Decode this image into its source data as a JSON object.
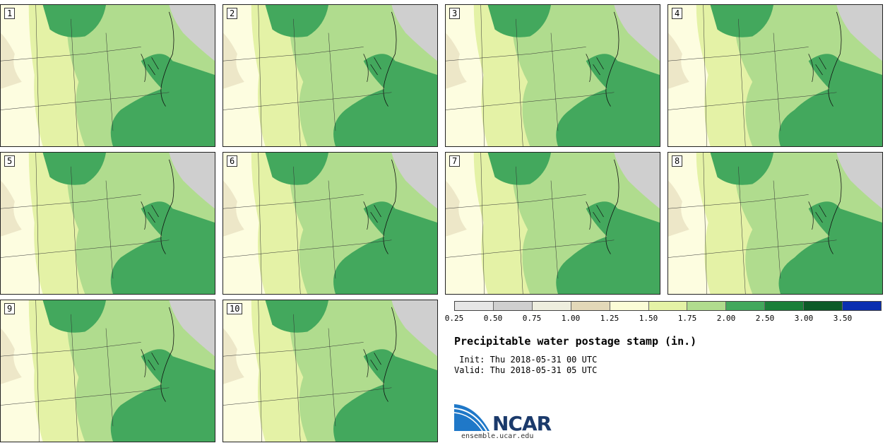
{
  "panels": [
    {
      "label": "1"
    },
    {
      "label": "2"
    },
    {
      "label": "3"
    },
    {
      "label": "4"
    },
    {
      "label": "5"
    },
    {
      "label": "6"
    },
    {
      "label": "7"
    },
    {
      "label": "8"
    },
    {
      "label": "9"
    },
    {
      "label": "10"
    }
  ],
  "colorbar": {
    "ticks": [
      "0.25",
      "0.50",
      "0.75",
      "1.00",
      "1.25",
      "1.50",
      "1.75",
      "2.00",
      "2.50",
      "3.00",
      "3.50"
    ],
    "colors": [
      "#e6e6e6",
      "#cfcfcf",
      "#eeeede",
      "#e3d8b8",
      "#fbfcd6",
      "#e4f2a6",
      "#b0dc8e",
      "#43a85d",
      "#1a7f39",
      "#0d5a28",
      "#0a2fb0"
    ]
  },
  "map_colors": {
    "low": "#fdfde0",
    "light": "#e4f2a6",
    "mid": "#b0dc8e",
    "high": "#43a85d",
    "very_high": "#1f8a42",
    "dry": "#e3d8b8",
    "land_gray": "#cfcfcf"
  },
  "title": "Precipitable water postage stamp (in.)",
  "init": " Init: Thu 2018-05-31 00 UTC",
  "valid": "Valid: Thu 2018-05-31 05 UTC",
  "logo": {
    "text": "NCAR",
    "site": "ensemble.ucar.edu"
  }
}
